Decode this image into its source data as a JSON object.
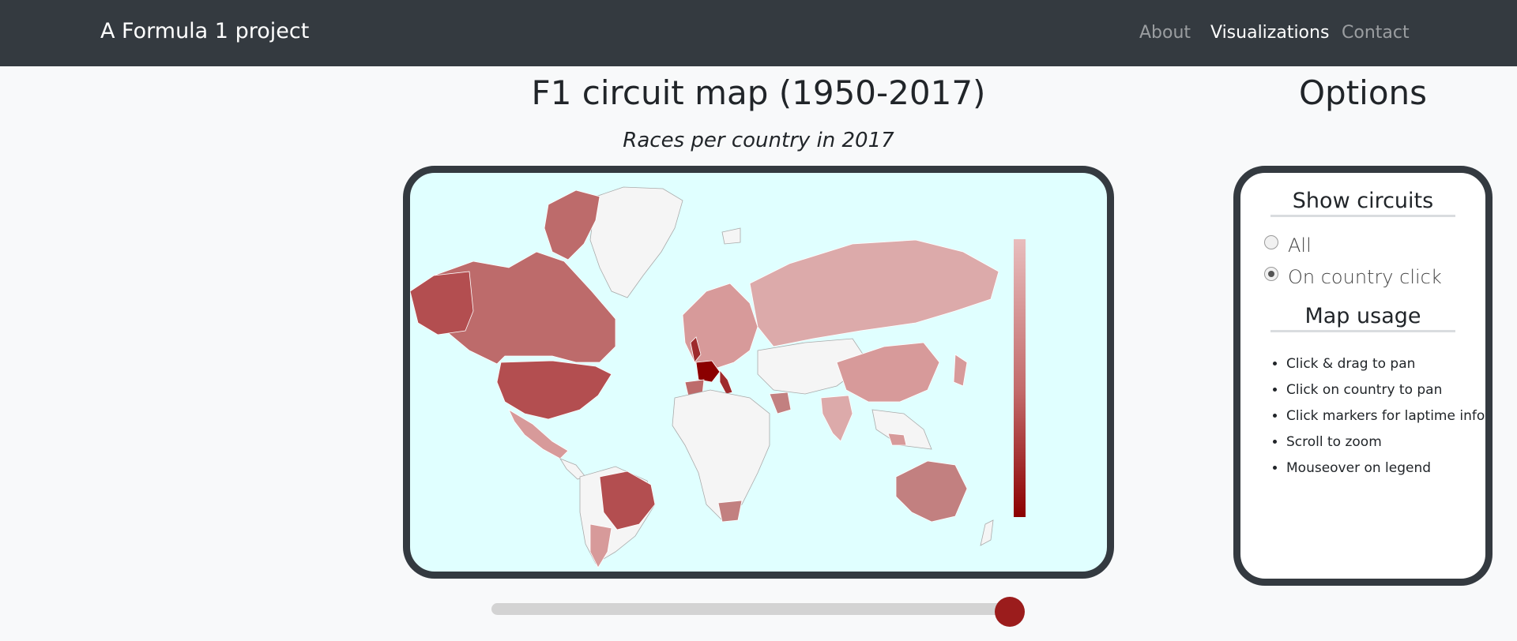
{
  "navbar": {
    "brand": "A Formula 1 project",
    "links": [
      {
        "label": "About",
        "active": false
      },
      {
        "label": "Visualizations",
        "active": true
      },
      {
        "label": "Contact",
        "active": false
      }
    ]
  },
  "main": {
    "title": "F1 circuit map (1950-2017)",
    "subtitle": "Races per country in 2017",
    "map": {
      "ocean_color": "#e0ffff",
      "no_data_color": "#f5f5f5",
      "legend_colors": [
        "#e8bdbd",
        "#c26a6a",
        "#8b0000"
      ]
    },
    "year_slider": {
      "value_fraction": 1.0,
      "thumb_color": "#9b1c1c"
    }
  },
  "options": {
    "title": "Options",
    "show_circuits": {
      "title": "Show circuits",
      "choices": [
        {
          "label": "All",
          "checked": false
        },
        {
          "label": "On country click",
          "checked": true
        }
      ]
    },
    "map_usage": {
      "title": "Map usage",
      "items": [
        "Click & drag to pan",
        "Click on country to pan",
        "Click markers for laptime info",
        "Scroll to zoom",
        "Mouseover on legend"
      ]
    }
  }
}
